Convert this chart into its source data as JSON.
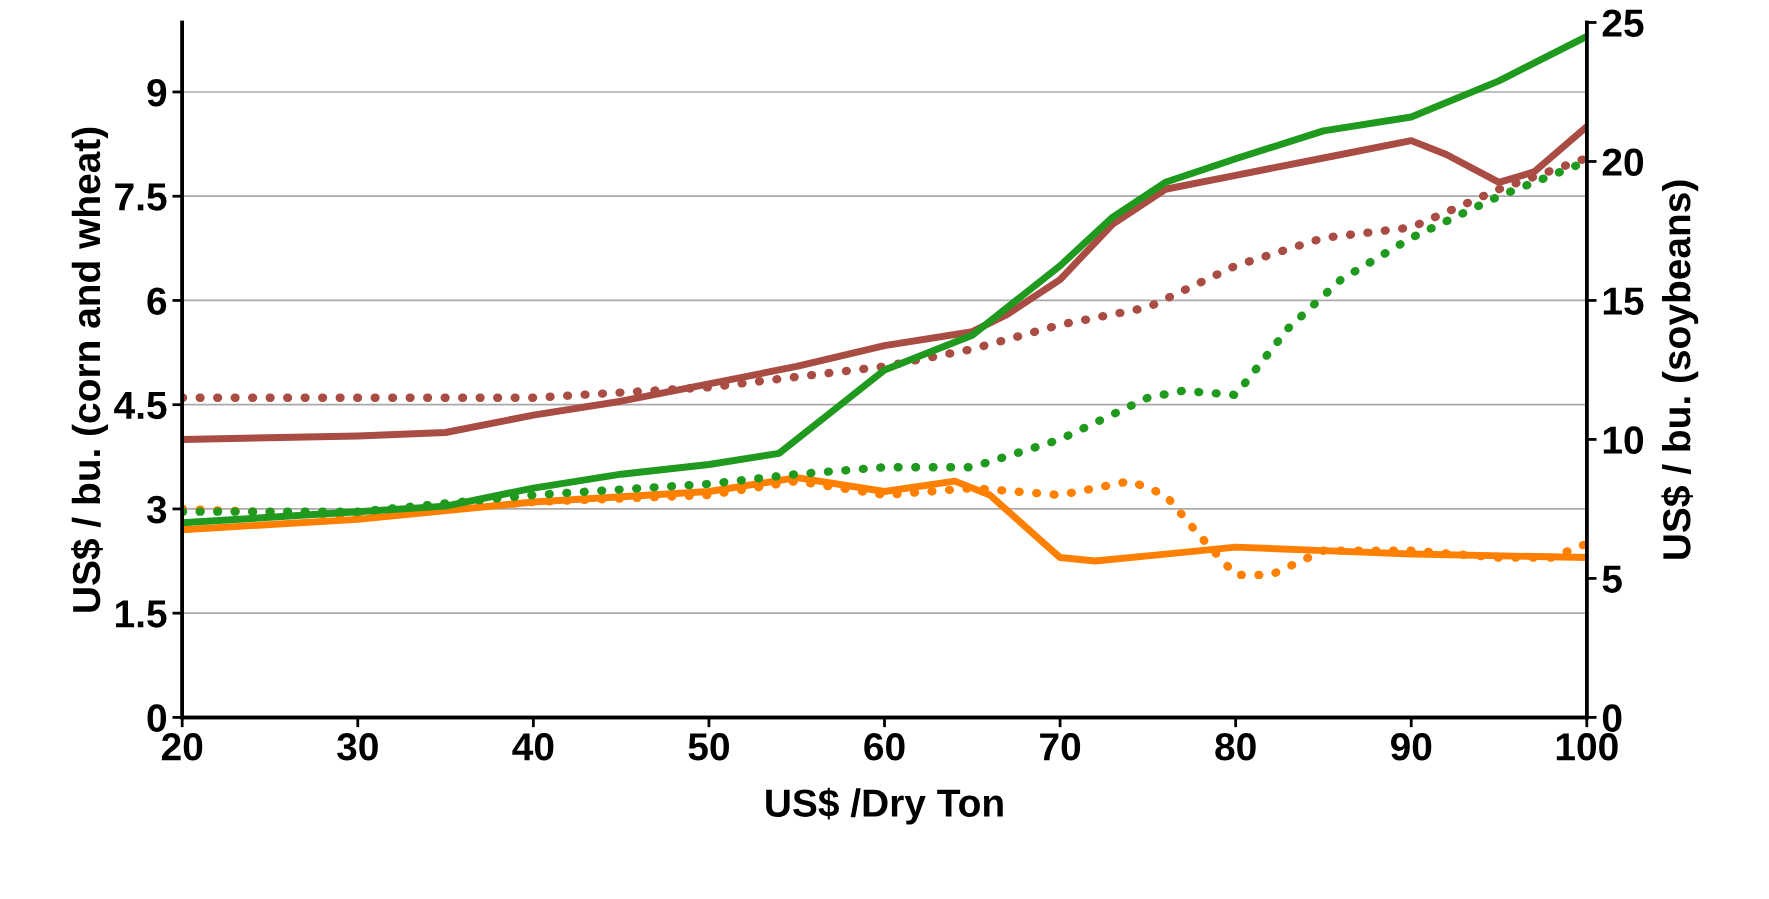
{
  "chart_data": {
    "type": "line",
    "xlabel": "US$ /Dry Ton",
    "ylabel": "US$ / bu. (corn and wheat)",
    "y2label": "US$ / bu. (soybeans)",
    "xlim": [
      20,
      100
    ],
    "xticks": [
      20,
      30,
      40,
      50,
      60,
      70,
      80,
      90,
      100
    ],
    "ylim": [
      0,
      10
    ],
    "yticks": [
      0,
      1.5,
      3,
      4.5,
      6,
      7.5,
      9
    ],
    "y2lim": [
      0,
      25
    ],
    "y2ticks": [
      0,
      5,
      10,
      15,
      20,
      25
    ],
    "grid": "y",
    "marker": "none",
    "series": [
      {
        "color": "#a84c44",
        "line_style": "dotted",
        "x": [
          20,
          30,
          40,
          50,
          55,
          60,
          65,
          70,
          75,
          80,
          85,
          90,
          95,
          100
        ],
        "values": [
          4.6,
          4.6,
          4.6,
          4.75,
          4.9,
          5.05,
          5.3,
          5.65,
          5.9,
          6.5,
          6.9,
          7.05,
          7.6,
          8.05
        ]
      },
      {
        "color": "#a84c44",
        "line_style": "solid",
        "x": [
          20,
          30,
          35,
          40,
          45,
          50,
          55,
          60,
          65,
          67,
          70,
          73,
          76,
          80,
          85,
          90,
          92,
          95,
          97,
          100
        ],
        "values": [
          4.0,
          4.05,
          4.1,
          4.35,
          4.55,
          4.8,
          5.05,
          5.35,
          5.55,
          5.8,
          6.3,
          7.1,
          7.6,
          7.8,
          8.05,
          8.3,
          8.1,
          7.7,
          7.85,
          8.5
        ]
      },
      {
        "color": "#ff8000",
        "line_style": "dotted",
        "x": [
          20,
          30,
          40,
          50,
          55,
          60,
          65,
          70,
          74,
          76,
          78,
          80,
          82,
          85,
          90,
          95,
          98,
          100
        ],
        "values": [
          3.0,
          2.9,
          3.1,
          3.2,
          3.4,
          3.2,
          3.3,
          3.2,
          3.4,
          3.2,
          2.6,
          2.05,
          2.05,
          2.4,
          2.4,
          2.3,
          2.3,
          2.5
        ]
      },
      {
        "color": "#ff8000",
        "line_style": "solid",
        "x": [
          20,
          30,
          40,
          50,
          55,
          60,
          64,
          66,
          70,
          72,
          76,
          80,
          85,
          90,
          100
        ],
        "values": [
          2.7,
          2.85,
          3.1,
          3.25,
          3.45,
          3.25,
          3.4,
          3.2,
          2.3,
          2.25,
          2.35,
          2.45,
          2.4,
          2.35,
          2.3
        ]
      },
      {
        "color": "#1f9a1f",
        "line_style": "dotted",
        "axis": "y2",
        "x": [
          20,
          30,
          40,
          50,
          55,
          60,
          65,
          70,
          75,
          77,
          80,
          83,
          86,
          90,
          95,
          100
        ],
        "values": [
          7.4,
          7.4,
          8.0,
          8.4,
          8.75,
          9.0,
          9.0,
          10.0,
          11.5,
          11.75,
          11.6,
          14,
          15.75,
          17.25,
          18.75,
          20.0
        ]
      },
      {
        "color": "#1f9a1f",
        "line_style": "solid",
        "axis": "y2",
        "x": [
          20,
          30,
          35,
          40,
          45,
          50,
          54,
          57,
          60,
          65,
          70,
          73,
          76,
          80,
          85,
          90,
          95,
          100
        ],
        "values": [
          7.0,
          7.4,
          7.6,
          8.25,
          8.75,
          9.1,
          9.5,
          11,
          12.5,
          13.75,
          16.25,
          18,
          19.25,
          20.1,
          21.1,
          21.6,
          22.9,
          24.5
        ]
      }
    ]
  }
}
